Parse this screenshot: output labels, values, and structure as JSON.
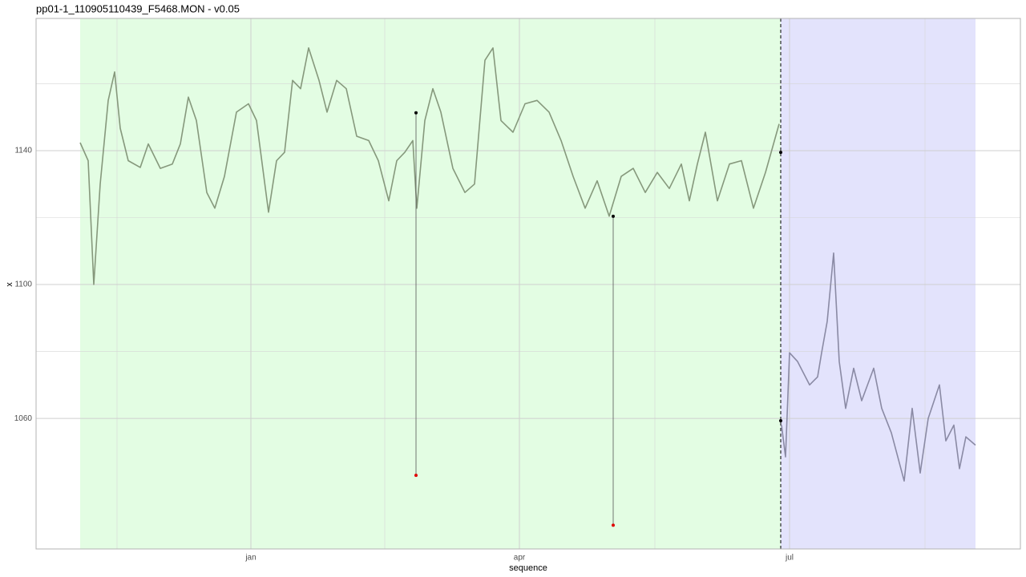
{
  "chart_data": {
    "type": "line",
    "title": "pp01-1_110905110439_F5468.MON - v0.05",
    "x_label": "sequence",
    "y_label": "x",
    "xlim": [
      -168,
      1060
    ],
    "ylim": [
      1021,
      1179.5
    ],
    "xticks": [
      {
        "value": 100,
        "label": "jan"
      },
      {
        "value": 435,
        "label": "apr"
      },
      {
        "value": 772,
        "label": "jul"
      }
    ],
    "xminor": [
      -67,
      267,
      604,
      941
    ],
    "yticks": [
      1060,
      1100,
      1140
    ],
    "yminor": [
      1080,
      1120,
      1160
    ],
    "grid": true,
    "regions": [
      {
        "xlim": [
          -113,
          761
        ],
        "color": "#ccfccc"
      },
      {
        "xlim": [
          761,
          1004
        ],
        "color": "#ccccfa"
      }
    ],
    "vline": 761,
    "series": [
      {
        "color": "#86987c",
        "x": [
          -113,
          -103,
          -96,
          -88,
          -78,
          -70,
          -63,
          -53,
          -38,
          -28,
          -13,
          2,
          12,
          22,
          32,
          45,
          55,
          67,
          82,
          97,
          107,
          122,
          132,
          142,
          152,
          162,
          172,
          185,
          195,
          207,
          219,
          232,
          247,
          259,
          272,
          282,
          292,
          302,
          307,
          317,
          327,
          337,
          352,
          367,
          379,
          392,
          402,
          412,
          427,
          442,
          457,
          472,
          487,
          502,
          517,
          532,
          547,
          562,
          577,
          592,
          607,
          622,
          637,
          647,
          657,
          667,
          682,
          697,
          712,
          727,
          742,
          752,
          759
        ],
        "values": [
          1142.4,
          1137,
          1100,
          1130,
          1155,
          1163.5,
          1146.7,
          1137,
          1135,
          1142,
          1134.7,
          1136,
          1142,
          1156,
          1149,
          1127.5,
          1122.8,
          1132.3,
          1151.5,
          1154,
          1149,
          1121.6,
          1137,
          1139.5,
          1161,
          1158.5,
          1170.7,
          1161,
          1151.5,
          1161,
          1158.5,
          1144.3,
          1143,
          1137,
          1125,
          1137,
          1139.5,
          1143,
          1122.8,
          1149,
          1158.5,
          1151.5,
          1134.7,
          1127.5,
          1130,
          1167,
          1170.7,
          1149,
          1145.5,
          1154,
          1155,
          1151.5,
          1143,
          1132.3,
          1122.8,
          1131,
          1120.4,
          1132.3,
          1134.7,
          1127.5,
          1133.5,
          1128.7,
          1136,
          1125,
          1136,
          1145.5,
          1125,
          1136,
          1137,
          1122.8,
          1133.5,
          1142,
          1148
        ]
      },
      {
        "color": "#8a8aa4",
        "x": [
          762,
          767,
          772,
          782,
          797,
          807,
          812,
          819,
          827,
          834,
          842,
          852,
          862,
          877,
          887,
          899,
          907,
          915,
          925,
          935,
          945,
          959,
          967,
          977,
          984,
          992,
          1004
        ],
        "values": [
          1058,
          1048.5,
          1079.6,
          1077,
          1070,
          1072.4,
          1079.6,
          1089,
          1109.4,
          1077,
          1063,
          1075,
          1065.3,
          1075,
          1063,
          1055.7,
          1048.5,
          1041.3,
          1063,
          1043.7,
          1060,
          1070,
          1053.3,
          1058,
          1045,
          1054.5,
          1052
        ]
      }
    ],
    "events": [
      {
        "x": 306,
        "from": 1151.3,
        "to": 1043
      },
      {
        "x": 552,
        "from": 1120.4,
        "to": 1028.1
      }
    ],
    "event_from_color": "#000000",
    "event_to_color": "#e00000",
    "boundary_points": {
      "x": [
        761,
        761
      ],
      "values": [
        1139.5,
        1059.3
      ]
    }
  }
}
